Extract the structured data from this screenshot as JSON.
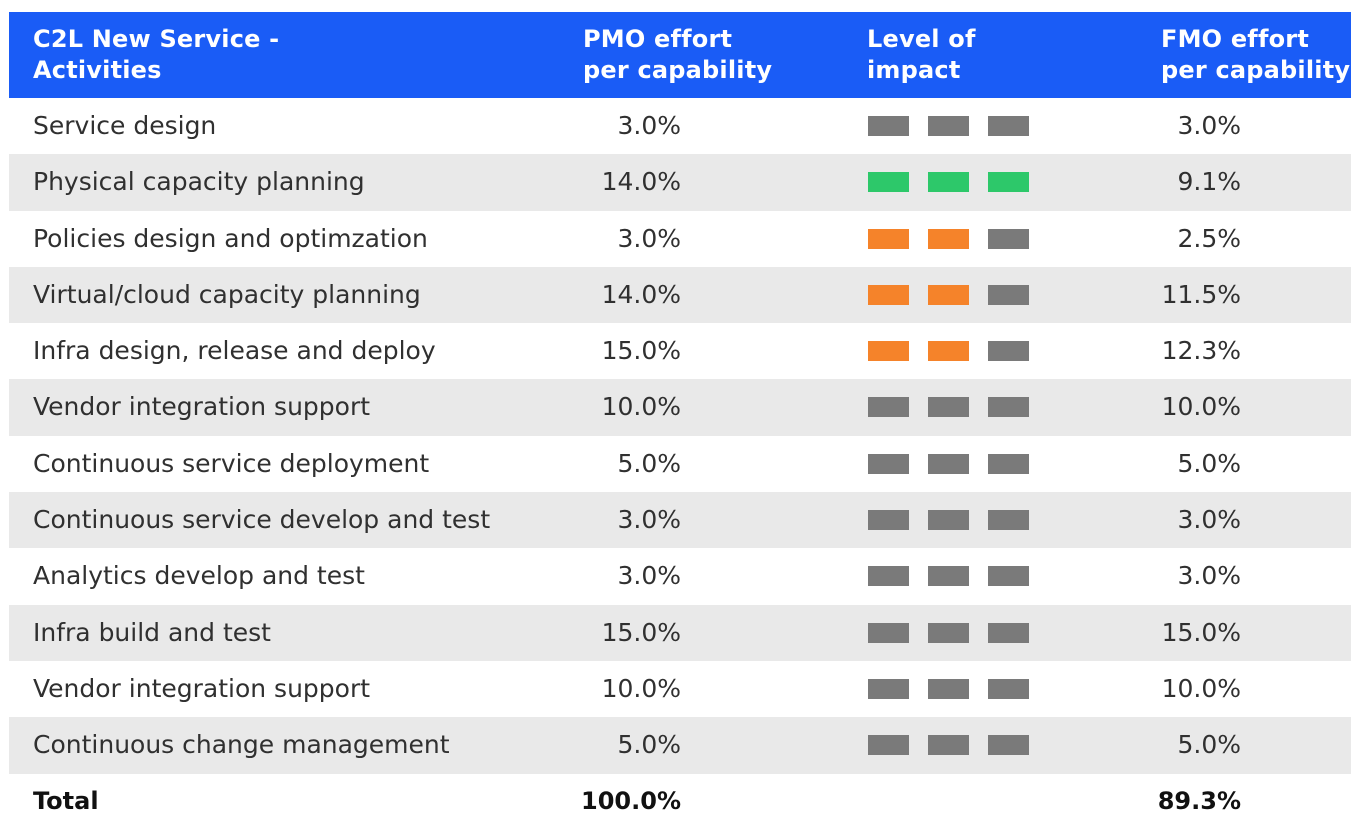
{
  "header": {
    "activities_line1": "C2L New Service -",
    "activities_line2": "Activities",
    "pmo_line1": "PMO effort",
    "pmo_line2": "per capability",
    "level_line1": "Level of",
    "level_line2": "impact",
    "fmo_line1": "FMO effort",
    "fmo_line2": "per capability"
  },
  "colors": {
    "header_bg": "#1a5cf6",
    "gray": "#7a7a7a",
    "green": "#2dc86a",
    "orange": "#f5832a",
    "row_alt": "#e9e9e9"
  },
  "rows": [
    {
      "activity": "Service design",
      "pmo": "3.0%",
      "impact": [
        "gray",
        "gray",
        "gray"
      ],
      "fmo": "3.0%"
    },
    {
      "activity": "Physical capacity planning",
      "pmo": "14.0%",
      "impact": [
        "green",
        "green",
        "green"
      ],
      "fmo": "9.1%"
    },
    {
      "activity": "Policies design and optimzation",
      "pmo": "3.0%",
      "impact": [
        "orange",
        "orange",
        "gray"
      ],
      "fmo": "2.5%"
    },
    {
      "activity": "Virtual/cloud capacity planning",
      "pmo": "14.0%",
      "impact": [
        "orange",
        "orange",
        "gray"
      ],
      "fmo": "11.5%"
    },
    {
      "activity": "Infra design, release and deploy",
      "pmo": "15.0%",
      "impact": [
        "orange",
        "orange",
        "gray"
      ],
      "fmo": "12.3%"
    },
    {
      "activity": "Vendor integration support",
      "pmo": "10.0%",
      "impact": [
        "gray",
        "gray",
        "gray"
      ],
      "fmo": "10.0%"
    },
    {
      "activity": "Continuous service deployment",
      "pmo": "5.0%",
      "impact": [
        "gray",
        "gray",
        "gray"
      ],
      "fmo": "5.0%"
    },
    {
      "activity": "Continuous service develop and test",
      "pmo": "3.0%",
      "impact": [
        "gray",
        "gray",
        "gray"
      ],
      "fmo": "3.0%"
    },
    {
      "activity": "Analytics develop and test",
      "pmo": "3.0%",
      "impact": [
        "gray",
        "gray",
        "gray"
      ],
      "fmo": "3.0%"
    },
    {
      "activity": "Infra build and test",
      "pmo": "15.0%",
      "impact": [
        "gray",
        "gray",
        "gray"
      ],
      "fmo": "15.0%"
    },
    {
      "activity": "Vendor integration support",
      "pmo": "10.0%",
      "impact": [
        "gray",
        "gray",
        "gray"
      ],
      "fmo": "10.0%"
    },
    {
      "activity": "Continuous change management",
      "pmo": "5.0%",
      "impact": [
        "gray",
        "gray",
        "gray"
      ],
      "fmo": "5.0%"
    }
  ],
  "total": {
    "label": "Total",
    "pmo": "100.0%",
    "fmo": "89.3%"
  }
}
